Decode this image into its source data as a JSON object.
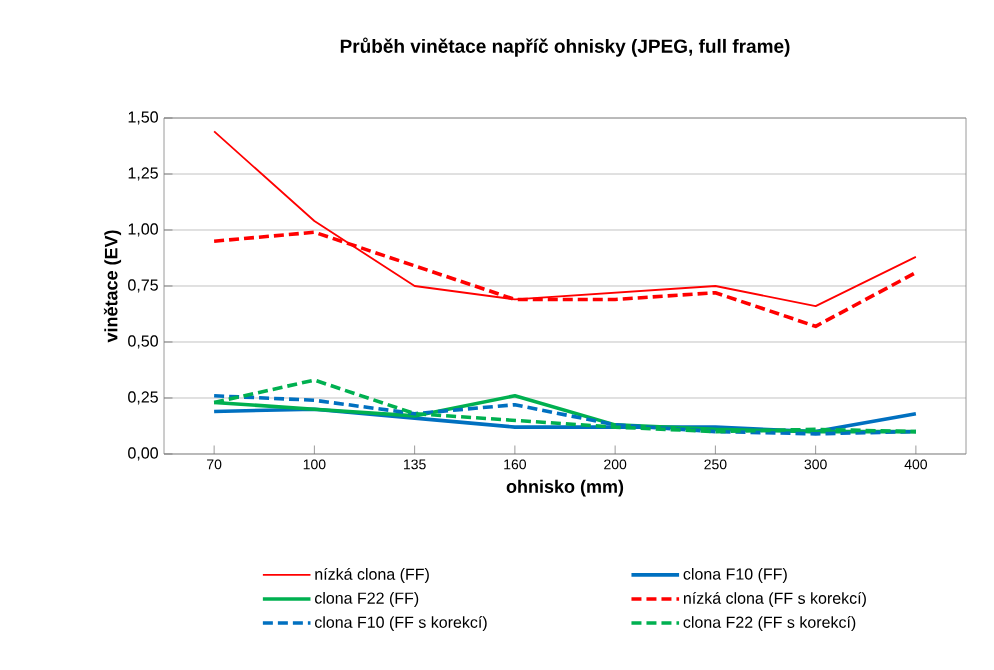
{
  "chart_data": {
    "type": "line",
    "title": "Průběh vinětace napříč ohnisky (JPEG, full frame)",
    "xlabel": "ohnisko (mm)",
    "ylabel": "vinětace (EV)",
    "categories": [
      "70",
      "100",
      "135",
      "160",
      "200",
      "250",
      "300",
      "400"
    ],
    "ylim": [
      0,
      1.5
    ],
    "yticks": [
      {
        "value": 0,
        "label": "0,00"
      },
      {
        "value": 0.25,
        "label": "0,25"
      },
      {
        "value": 0.5,
        "label": "0,50"
      },
      {
        "value": 0.75,
        "label": "0,75"
      },
      {
        "value": 1.0,
        "label": "1,00"
      },
      {
        "value": 1.25,
        "label": "1,25"
      },
      {
        "value": 1.5,
        "label": "1,50"
      }
    ],
    "grid": "y",
    "legend": "bottom",
    "marker": "none",
    "series": [
      {
        "name": "nízká clona (FF)",
        "color": "#ff0000",
        "line_style": "solid",
        "values": [
          1.44,
          1.04,
          0.75,
          0.69,
          0.72,
          0.75,
          0.66,
          0.88
        ]
      },
      {
        "name": "clona F10 (FF)",
        "color": "#0070c0",
        "line_style": "solid",
        "values": [
          0.19,
          0.2,
          0.16,
          0.12,
          0.12,
          0.12,
          0.1,
          0.18
        ]
      },
      {
        "name": "clona F22 (FF)",
        "color": "#00b050",
        "line_style": "solid",
        "values": [
          0.23,
          0.2,
          0.17,
          0.26,
          0.13,
          0.11,
          0.1,
          0.1
        ]
      },
      {
        "name": "nízká clona (FF s korekcí)",
        "color": "#ff0000",
        "line_style": "dashed",
        "values": [
          0.95,
          0.99,
          0.84,
          0.69,
          0.69,
          0.72,
          0.57,
          0.81
        ]
      },
      {
        "name": "clona F10 (FF s korekcí)",
        "color": "#0070c0",
        "line_style": "dashed",
        "values": [
          0.26,
          0.24,
          0.18,
          0.22,
          0.13,
          0.1,
          0.09,
          0.1
        ]
      },
      {
        "name": "clona F22 (FF s korekcí)",
        "color": "#00b050",
        "line_style": "dashed",
        "values": [
          0.23,
          0.33,
          0.18,
          0.15,
          0.12,
          0.1,
          0.11,
          0.1
        ]
      }
    ]
  }
}
